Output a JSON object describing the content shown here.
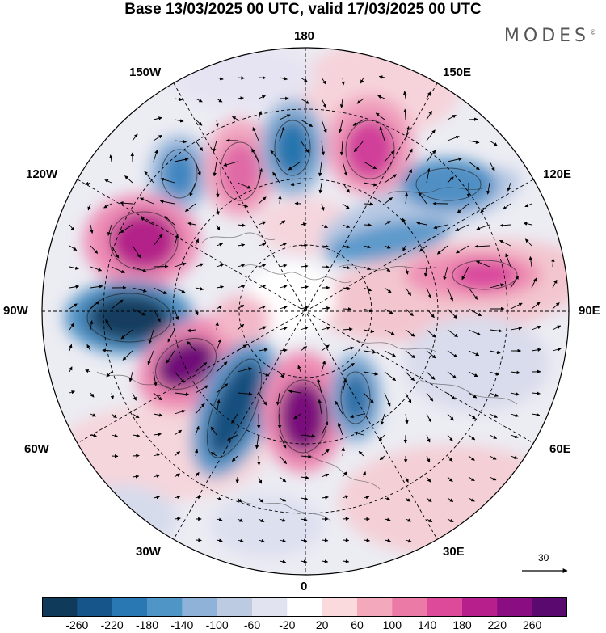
{
  "header": {
    "title": "Base 13/03/2025 00 UTC, valid 17/03/2025 00 UTC",
    "brand": "MODES",
    "brand_mark": "©"
  },
  "map": {
    "projection": "north polar stereographic",
    "longitude_labels": {
      "top": "180",
      "top_left": "150W",
      "top_right": "150E",
      "upper_left": "120W",
      "upper_right": "120E",
      "left": "90W",
      "right": "90E",
      "lower_left": "60W",
      "lower_right": "60E",
      "bottom_left": "30W",
      "bottom_right": "30E",
      "bottom": "0"
    },
    "reference_vector": {
      "label": "30"
    }
  },
  "colorbar": {
    "ticks": [
      "-260",
      "-220",
      "-180",
      "-140",
      "-100",
      "-60",
      "-20",
      "20",
      "60",
      "100",
      "140",
      "180",
      "220",
      "260"
    ],
    "colors": [
      "#0f3a5a",
      "#15558a",
      "#2a78b3",
      "#4f96c6",
      "#8fb3d8",
      "#bccae2",
      "#e2e3f0",
      "#ffffff",
      "#fadadd",
      "#f3a9bb",
      "#eb7aa7",
      "#dd4a9a",
      "#b71f8c",
      "#8a0d82",
      "#5a0a6e"
    ]
  }
}
